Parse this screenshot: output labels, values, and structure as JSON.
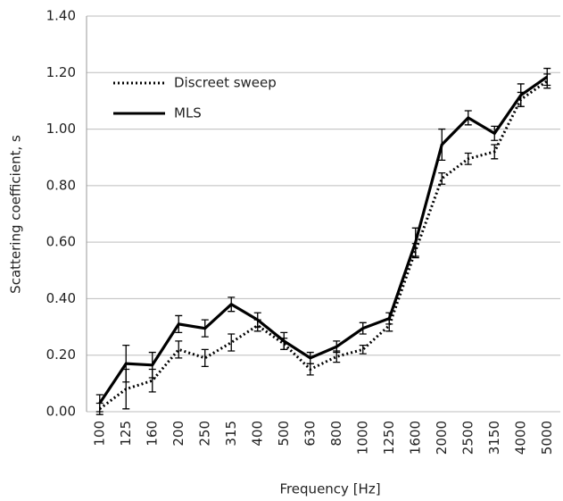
{
  "chart_data": {
    "type": "line",
    "x_label": "Frequency [Hz]",
    "y_label": "Scattering coefficient, s",
    "categories": [
      "100",
      "125",
      "160",
      "200",
      "250",
      "315",
      "400",
      "500",
      "630",
      "800",
      "1000",
      "1250",
      "1600",
      "2000",
      "2500",
      "3150",
      "4000",
      "5000"
    ],
    "ylim": [
      0,
      1.4
    ],
    "yticks": [
      {
        "value": 0,
        "label": "0.00"
      },
      {
        "value": 0.2,
        "label": "0.20"
      },
      {
        "value": 0.4,
        "label": "0.40"
      },
      {
        "value": 0.6,
        "label": "0.60"
      },
      {
        "value": 0.8,
        "label": "0.80"
      },
      {
        "value": 1.0,
        "label": "1.00"
      },
      {
        "value": 1.2,
        "label": "1.20"
      },
      {
        "value": 1.4,
        "label": "1.40"
      }
    ],
    "grid": true,
    "legend": "top-left",
    "series": [
      {
        "name": "Discreet sweep",
        "color": "#000000",
        "style": "dotted",
        "values": [
          0.01,
          0.08,
          0.11,
          0.22,
          0.19,
          0.245,
          0.305,
          0.24,
          0.15,
          0.195,
          0.22,
          0.305,
          0.57,
          0.825,
          0.895,
          0.92,
          1.105,
          1.17
        ],
        "errors": [
          0.02,
          0.07,
          0.04,
          0.03,
          0.03,
          0.03,
          0.02,
          0.02,
          0.02,
          0.02,
          0.015,
          0.02,
          0.025,
          0.02,
          0.02,
          0.025,
          0.025,
          0.025
        ]
      },
      {
        "name": "MLS",
        "color": "#000000",
        "style": "solid",
        "values": [
          0.03,
          0.17,
          0.165,
          0.31,
          0.295,
          0.38,
          0.325,
          0.25,
          0.19,
          0.23,
          0.295,
          0.33,
          0.6,
          0.945,
          1.04,
          0.985,
          1.12,
          1.185
        ],
        "errors": [
          0.03,
          0.065,
          0.045,
          0.03,
          0.03,
          0.025,
          0.025,
          0.03,
          0.02,
          0.02,
          0.02,
          0.02,
          0.05,
          0.055,
          0.025,
          0.025,
          0.04,
          0.03
        ]
      }
    ]
  }
}
